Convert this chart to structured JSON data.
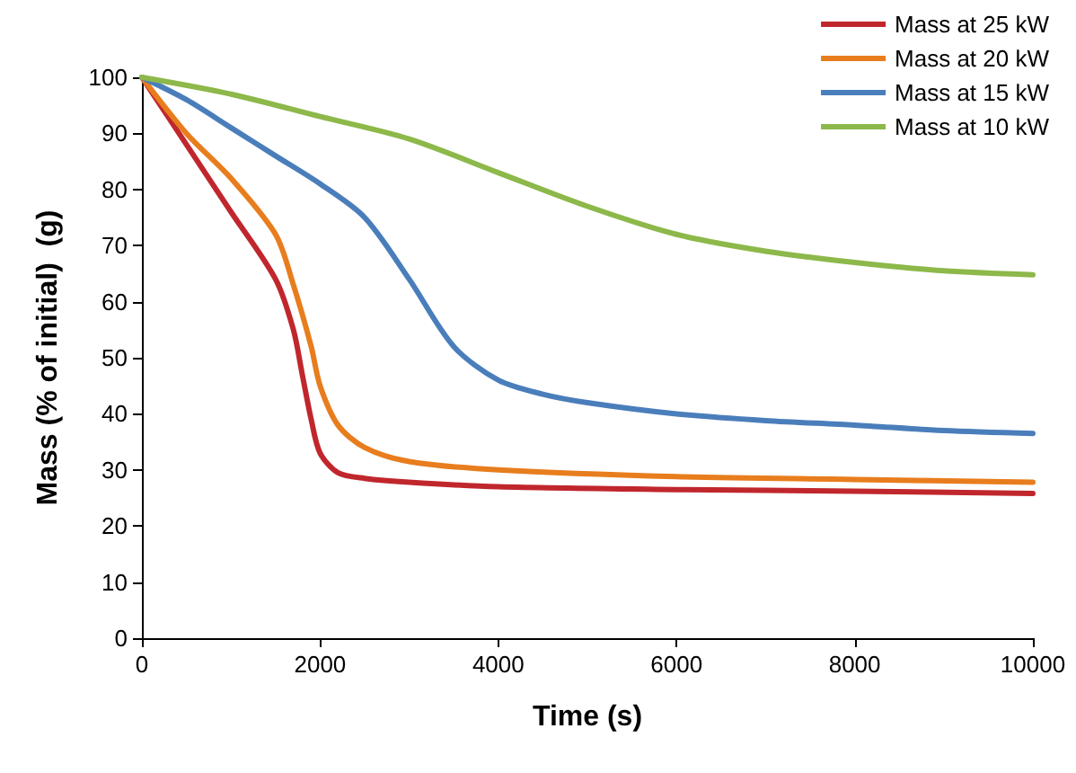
{
  "chart_data": {
    "type": "line",
    "xlabel": "Time (s)",
    "ylabel": "Mass (% of initial)  (g)",
    "xlim": [
      0,
      10000
    ],
    "xticks": [
      0,
      2000,
      4000,
      6000,
      8000,
      10000
    ],
    "ylim": [
      0,
      100
    ],
    "yticks": [
      0,
      10,
      20,
      30,
      40,
      50,
      60,
      70,
      80,
      90,
      100
    ],
    "grid": false,
    "legend": "top right",
    "marker": "none",
    "series": [
      {
        "name": "Mass at 25 kW",
        "color": "#c0272d",
        "x": [
          0,
          500,
          1000,
          1500,
          1700,
          1800,
          1900,
          2000,
          2200,
          2500,
          3000,
          4000,
          6000,
          8000,
          10000
        ],
        "values": [
          100,
          88,
          76,
          64,
          55,
          47,
          39,
          33,
          29.5,
          28.5,
          27.8,
          27,
          26.5,
          26.2,
          25.8
        ]
      },
      {
        "name": "Mass at 20 kW",
        "color": "#e87d1e",
        "x": [
          0,
          500,
          1000,
          1500,
          1700,
          1900,
          2000,
          2200,
          2500,
          3000,
          4000,
          6000,
          8000,
          10000
        ],
        "values": [
          100,
          90,
          82,
          72,
          63,
          52,
          45,
          38,
          34,
          31.5,
          30,
          28.8,
          28.3,
          27.8
        ]
      },
      {
        "name": "Mass at 15 kW",
        "color": "#4a7ebb",
        "x": [
          0,
          500,
          1000,
          1500,
          2000,
          2500,
          3000,
          3500,
          4000,
          4500,
          5000,
          6000,
          7000,
          8000,
          9000,
          10000
        ],
        "values": [
          100,
          96,
          91,
          86,
          81,
          75,
          64,
          52,
          46,
          43.5,
          42,
          40,
          38.8,
          38,
          37,
          36.5
        ]
      },
      {
        "name": "Mass at 10 kW",
        "color": "#8db84a",
        "x": [
          0,
          1000,
          2000,
          3000,
          4000,
          5000,
          6000,
          7000,
          8000,
          9000,
          10000
        ],
        "values": [
          100,
          97,
          93,
          89,
          83,
          77,
          72,
          69,
          67,
          65.5,
          64.8
        ]
      }
    ]
  }
}
